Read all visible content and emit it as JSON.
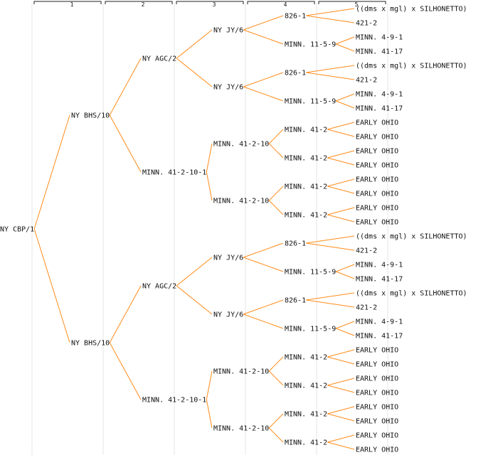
{
  "colors": {
    "edge": "#ff8c1a",
    "column_rule": "#e6e6e6",
    "header_bracket": "#222222",
    "text": "#111111"
  },
  "generations": [
    "1",
    "2",
    "3",
    "4",
    "5"
  ],
  "pedigree": {
    "label": "NY CBP/1",
    "parents": [
      {
        "label": "NY BHS/10",
        "parents": [
          {
            "label": "NY AGC/2",
            "parents": [
              {
                "label": "NY JY/6",
                "parents": [
                  {
                    "label": "826-1",
                    "parents": [
                      {
                        "label": "((dms x mgl) x SILHONETTO)"
                      },
                      {
                        "label": "421-2"
                      }
                    ]
                  },
                  {
                    "label": "MINN. 11-5-9",
                    "parents": [
                      {
                        "label": "MINN. 4-9-1"
                      },
                      {
                        "label": "MINN. 41-17"
                      }
                    ]
                  }
                ]
              },
              {
                "label": "NY JY/6",
                "parents": [
                  {
                    "label": "826-1",
                    "parents": [
                      {
                        "label": "((dms x mgl) x SILHONETTO)"
                      },
                      {
                        "label": "421-2"
                      }
                    ]
                  },
                  {
                    "label": "MINN. 11-5-9",
                    "parents": [
                      {
                        "label": "MINN. 4-9-1"
                      },
                      {
                        "label": "MINN. 41-17"
                      }
                    ]
                  }
                ]
              }
            ]
          },
          {
            "label": "MINN. 41-2-10-1",
            "parents": [
              {
                "label": "MINN. 41-2-10",
                "parents": [
                  {
                    "label": "MINN. 41-2",
                    "parents": [
                      {
                        "label": "EARLY OHIO"
                      },
                      {
                        "label": "EARLY OHIO"
                      }
                    ]
                  },
                  {
                    "label": "MINN. 41-2",
                    "parents": [
                      {
                        "label": "EARLY OHIO"
                      },
                      {
                        "label": "EARLY OHIO"
                      }
                    ]
                  }
                ]
              },
              {
                "label": "MINN. 41-2-10",
                "parents": [
                  {
                    "label": "MINN. 41-2",
                    "parents": [
                      {
                        "label": "EARLY OHIO"
                      },
                      {
                        "label": "EARLY OHIO"
                      }
                    ]
                  },
                  {
                    "label": "MINN. 41-2",
                    "parents": [
                      {
                        "label": "EARLY OHIO"
                      },
                      {
                        "label": "EARLY OHIO"
                      }
                    ]
                  }
                ]
              }
            ]
          }
        ]
      },
      {
        "label": "NY BHS/10",
        "parents": [
          {
            "label": "NY AGC/2",
            "parents": [
              {
                "label": "NY JY/6",
                "parents": [
                  {
                    "label": "826-1",
                    "parents": [
                      {
                        "label": "((dms x mgl) x SILHONETTO)"
                      },
                      {
                        "label": "421-2"
                      }
                    ]
                  },
                  {
                    "label": "MINN. 11-5-9",
                    "parents": [
                      {
                        "label": "MINN. 4-9-1"
                      },
                      {
                        "label": "MINN. 41-17"
                      }
                    ]
                  }
                ]
              },
              {
                "label": "NY JY/6",
                "parents": [
                  {
                    "label": "826-1",
                    "parents": [
                      {
                        "label": "((dms x mgl) x SILHONETTO)"
                      },
                      {
                        "label": "421-2"
                      }
                    ]
                  },
                  {
                    "label": "MINN. 11-5-9",
                    "parents": [
                      {
                        "label": "MINN. 4-9-1"
                      },
                      {
                        "label": "MINN. 41-17"
                      }
                    ]
                  }
                ]
              }
            ]
          },
          {
            "label": "MINN. 41-2-10-1",
            "parents": [
              {
                "label": "MINN. 41-2-10",
                "parents": [
                  {
                    "label": "MINN. 41-2",
                    "parents": [
                      {
                        "label": "EARLY OHIO"
                      },
                      {
                        "label": "EARLY OHIO"
                      }
                    ]
                  },
                  {
                    "label": "MINN. 41-2",
                    "parents": [
                      {
                        "label": "EARLY OHIO"
                      },
                      {
                        "label": "EARLY OHIO"
                      }
                    ]
                  }
                ]
              },
              {
                "label": "MINN. 41-2-10",
                "parents": [
                  {
                    "label": "MINN. 41-2",
                    "parents": [
                      {
                        "label": "EARLY OHIO"
                      },
                      {
                        "label": "EARLY OHIO"
                      }
                    ]
                  },
                  {
                    "label": "MINN. 41-2",
                    "parents": [
                      {
                        "label": "EARLY OHIO"
                      },
                      {
                        "label": "EARLY OHIO"
                      }
                    ]
                  }
                ]
              }
            ]
          }
        ]
      }
    ]
  }
}
